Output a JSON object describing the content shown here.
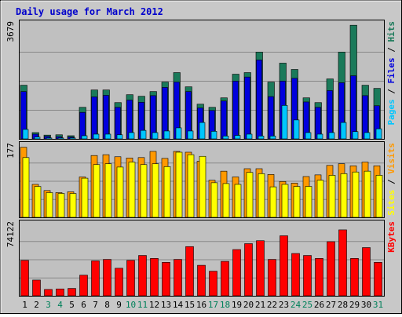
{
  "chart_data": {
    "type": "bar",
    "title": "Daily usage for March 2012",
    "categories": [
      "1",
      "2",
      "3",
      "4",
      "5",
      "6",
      "7",
      "8",
      "9",
      "10",
      "11",
      "12",
      "13",
      "14",
      "15",
      "16",
      "17",
      "18",
      "19",
      "20",
      "21",
      "22",
      "23",
      "24",
      "25",
      "26",
      "27",
      "28",
      "29",
      "30",
      "31"
    ],
    "weekend_days": [
      "3",
      "4",
      "10",
      "11",
      "17",
      "18",
      "24",
      "25",
      "31"
    ],
    "panels": [
      {
        "name": "hits_files_pages",
        "ymax_label": "3679",
        "ylim": [
          0,
          3679
        ],
        "grid": true,
        "axis_label_parts": [
          "Pages",
          " / ",
          "Files",
          " / ",
          "Hits"
        ],
        "series": [
          {
            "name": "Hits",
            "color": "#1a7a5a",
            "values": [
              1700,
              200,
              120,
              130,
              100,
              1000,
              1550,
              1550,
              1150,
              1400,
              1350,
              1500,
              1800,
              2100,
              1650,
              1100,
              1000,
              1300,
              2050,
              2100,
              2750,
              1800,
              2400,
              2200,
              1300,
              1150,
              1900,
              2750,
              3600,
              1700,
              1600
            ]
          },
          {
            "name": "Files",
            "color": "#0000dd",
            "values": [
              1500,
              150,
              80,
              70,
              60,
              840,
              1330,
              1380,
              1000,
              1230,
              1160,
              1370,
              1630,
              1800,
              1500,
              980,
              900,
              1200,
              1830,
              1960,
              2500,
              1340,
              1830,
              1920,
              1170,
              1000,
              1530,
              1780,
              2000,
              1370,
              1050
            ]
          },
          {
            "name": "Pages",
            "color": "#00c6ff",
            "values": [
              300,
              60,
              30,
              30,
              30,
              100,
              150,
              150,
              130,
              200,
              270,
              200,
              250,
              350,
              250,
              520,
              240,
              90,
              110,
              150,
              90,
              90,
              1060,
              600,
              200,
              150,
              200,
              520,
              230,
              200,
              320
            ]
          }
        ]
      },
      {
        "name": "visits_sites",
        "ymax_label": "177",
        "ylim": [
          0,
          177
        ],
        "grid": true,
        "axis_label_parts": [
          "Sites",
          " / ",
          "Visits"
        ],
        "series": [
          {
            "name": "Visits",
            "color": "#ff9900",
            "values": [
              170,
              80,
              65,
              60,
              62,
              98,
              150,
              152,
              147,
              144,
              145,
              160,
              143,
              160,
              158,
              136,
              90,
              112,
              98,
              118,
              118,
              104,
              87,
              83,
              99,
              103,
              126,
              130,
              125,
              134,
              125
            ]
          },
          {
            "name": "Sites",
            "color": "#ffff00",
            "values": [
              145,
              75,
              60,
              58,
              58,
              95,
              128,
              130,
              122,
              134,
              128,
              130,
              123,
              158,
              152,
              148,
              84,
              82,
              80,
              109,
              106,
              74,
              80,
              75,
              75,
              90,
              102,
              106,
              110,
              112,
              102
            ]
          }
        ]
      },
      {
        "name": "kbytes",
        "ymax_label": "74122",
        "ylim": [
          0,
          74122
        ],
        "grid": true,
        "axis_label_parts": [
          "KBytes"
        ],
        "series": [
          {
            "name": "KBytes",
            "color": "#ff0000",
            "values": [
              36000,
              16000,
              6500,
              7000,
              7500,
              21000,
              35500,
              37000,
              28000,
              36000,
              41000,
              38000,
              34000,
              37000,
              50000,
              31000,
              25000,
              35000,
              47000,
              53000,
              56000,
              37000,
              61000,
              43000,
              41000,
              38000,
              55000,
              67000,
              38000,
              49000,
              34000
            ]
          }
        ]
      }
    ]
  },
  "colors": {
    "frame_bg": "#c8c8c8",
    "panel_bg": "#c0c0c0",
    "title": "#0000cc",
    "weekday_label": "#000000",
    "weekend_label": "#00805a",
    "slash": "#000000"
  }
}
